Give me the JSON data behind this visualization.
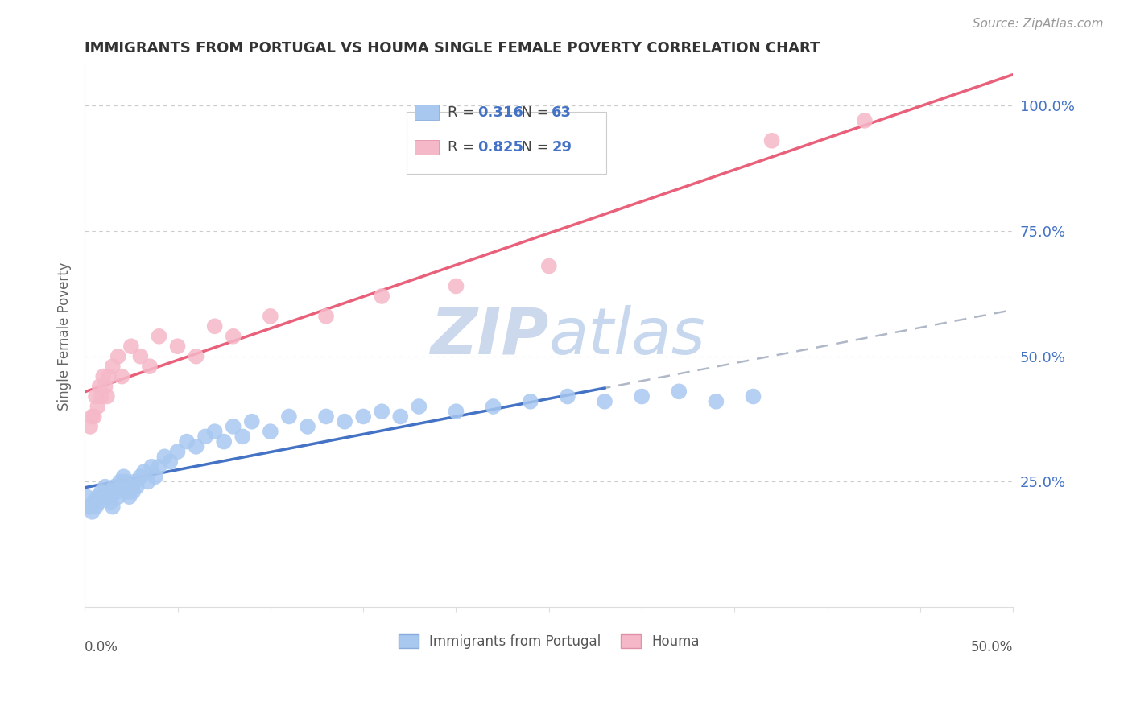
{
  "title": "IMMIGRANTS FROM PORTUGAL VS HOUMA SINGLE FEMALE POVERTY CORRELATION CHART",
  "source": "Source: ZipAtlas.com",
  "ylabel": "Single Female Poverty",
  "xlim": [
    0.0,
    0.5
  ],
  "ylim": [
    0.0,
    1.08
  ],
  "blue_R": 0.316,
  "blue_N": 63,
  "pink_R": 0.825,
  "pink_N": 29,
  "blue_color": "#a8c8f0",
  "pink_color": "#f5b8c8",
  "blue_line_color": "#4472c4",
  "pink_line_color": "#e8607a",
  "dashed_line_color": "#b0b8c8",
  "watermark_color": "#ccd8ec",
  "blue_scatter_x": [
    0.001,
    0.002,
    0.003,
    0.004,
    0.005,
    0.006,
    0.007,
    0.008,
    0.009,
    0.01,
    0.011,
    0.012,
    0.013,
    0.014,
    0.015,
    0.016,
    0.017,
    0.018,
    0.019,
    0.02,
    0.021,
    0.022,
    0.023,
    0.024,
    0.025,
    0.026,
    0.027,
    0.028,
    0.03,
    0.032,
    0.034,
    0.036,
    0.038,
    0.04,
    0.043,
    0.046,
    0.05,
    0.055,
    0.06,
    0.065,
    0.07,
    0.075,
    0.08,
    0.085,
    0.09,
    0.1,
    0.11,
    0.12,
    0.13,
    0.14,
    0.15,
    0.16,
    0.17,
    0.18,
    0.2,
    0.22,
    0.24,
    0.26,
    0.28,
    0.3,
    0.32,
    0.34,
    0.36
  ],
  "blue_scatter_y": [
    0.22,
    0.2,
    0.2,
    0.19,
    0.21,
    0.2,
    0.22,
    0.21,
    0.23,
    0.22,
    0.24,
    0.22,
    0.23,
    0.21,
    0.2,
    0.24,
    0.23,
    0.22,
    0.25,
    0.24,
    0.26,
    0.25,
    0.23,
    0.22,
    0.24,
    0.23,
    0.25,
    0.24,
    0.26,
    0.27,
    0.25,
    0.28,
    0.26,
    0.28,
    0.3,
    0.29,
    0.31,
    0.33,
    0.32,
    0.34,
    0.35,
    0.33,
    0.36,
    0.34,
    0.37,
    0.35,
    0.38,
    0.36,
    0.38,
    0.37,
    0.38,
    0.39,
    0.38,
    0.4,
    0.39,
    0.4,
    0.41,
    0.42,
    0.41,
    0.42,
    0.43,
    0.41,
    0.42
  ],
  "pink_scatter_x": [
    0.003,
    0.004,
    0.005,
    0.006,
    0.007,
    0.008,
    0.009,
    0.01,
    0.011,
    0.012,
    0.013,
    0.015,
    0.018,
    0.02,
    0.025,
    0.03,
    0.035,
    0.04,
    0.05,
    0.06,
    0.07,
    0.08,
    0.1,
    0.13,
    0.16,
    0.2,
    0.25,
    0.37,
    0.42
  ],
  "pink_scatter_y": [
    0.36,
    0.38,
    0.38,
    0.42,
    0.4,
    0.44,
    0.42,
    0.46,
    0.44,
    0.42,
    0.46,
    0.48,
    0.5,
    0.46,
    0.52,
    0.5,
    0.48,
    0.54,
    0.52,
    0.5,
    0.56,
    0.54,
    0.58,
    0.58,
    0.62,
    0.64,
    0.68,
    0.93,
    0.97
  ]
}
